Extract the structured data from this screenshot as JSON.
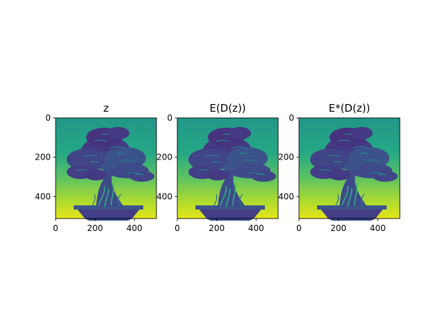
{
  "chart_data": [
    {
      "type": "heatmap",
      "title": "z",
      "colormap": "viridis",
      "xlim": [
        0,
        512
      ],
      "ylim": [
        512,
        0
      ],
      "x_ticks": [
        0,
        200,
        400
      ],
      "y_ticks": [
        0,
        200,
        400
      ],
      "image": "bonsai tree"
    },
    {
      "type": "heatmap",
      "title": "E(D(z))",
      "colormap": "viridis",
      "xlim": [
        0,
        512
      ],
      "ylim": [
        512,
        0
      ],
      "x_ticks": [
        0,
        200,
        400
      ],
      "y_ticks": [
        0,
        200,
        400
      ],
      "image": "bonsai tree"
    },
    {
      "type": "heatmap",
      "title": "E*(D(z))",
      "colormap": "viridis",
      "xlim": [
        0,
        512
      ],
      "ylim": [
        512,
        0
      ],
      "x_ticks": [
        0,
        200,
        400
      ],
      "y_ticks": [
        0,
        200,
        400
      ],
      "image": "bonsai tree"
    }
  ]
}
